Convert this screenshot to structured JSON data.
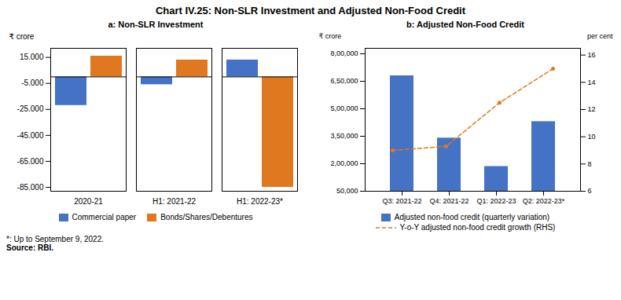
{
  "title": "Chart IV.25: Non-SLR Investment and Adjusted Non-Food Credit",
  "annotations": [
    "*: Up to September 9, 2022.",
    "Source: RBI."
  ],
  "chart_data": [
    {
      "type": "bar",
      "title": "a: Non-SLR Investment",
      "categories": [
        "2020-21",
        "H1: 2021-22",
        "H1: 2022-23*"
      ],
      "series": [
        {
          "name": "Commercial paper",
          "color": "#4472C4",
          "values": [
            -22000,
            -6000,
            13000
          ]
        },
        {
          "name": "Bonds/Shares/Debentures",
          "color": "#E07820",
          "values": [
            16000,
            13000,
            -85000
          ]
        }
      ],
      "ylabel": "₹ crore",
      "ylim": [
        -88000,
        22000
      ],
      "yticks": [
        {
          "value": 15000,
          "label": "15.000"
        },
        {
          "value": -5000,
          "label": "-5.000"
        },
        {
          "value": -25000,
          "label": "-25.000"
        },
        {
          "value": -45000,
          "label": "-45.000"
        },
        {
          "value": -65000,
          "label": "-65.000"
        },
        {
          "value": -85000,
          "label": "-85.000"
        }
      ],
      "grid": false,
      "legend": "bottom"
    },
    {
      "type": "bar",
      "title": "b: Adjusted Non-Food Credit",
      "categories": [
        "Q3: 2021-22",
        "Q4: 2021-22",
        "Q1: 2022-23",
        "Q2: 2022-23*"
      ],
      "series": [
        {
          "name": "Adjusted non-food credit (quarterly variation)",
          "type": "bar",
          "color": "#4472C4",
          "values": [
            680000,
            340000,
            185000,
            430000
          ]
        },
        {
          "name": "Y-o-Y adjusted non-food credit growth (RHS)",
          "type": "line",
          "axis": "y2",
          "color": "#E07820",
          "line_style": "dashed",
          "marker": "circle",
          "values": [
            9.0,
            9.3,
            12.5,
            15.0
          ]
        }
      ],
      "ylabel": "₹ crore",
      "y2label": "per cent",
      "ylim": [
        50000,
        830000
      ],
      "yticks": [
        {
          "value": 50000,
          "label": "50,000"
        },
        {
          "value": 200000,
          "label": "2,00,000"
        },
        {
          "value": 350000,
          "label": "3,50,000"
        },
        {
          "value": 500000,
          "label": "5,00,000"
        },
        {
          "value": 650000,
          "label": "6,50,000"
        },
        {
          "value": 800000,
          "label": "8,00,000"
        }
      ],
      "y2lim": [
        6,
        16.5
      ],
      "y2ticks": [
        6,
        8,
        10,
        12,
        14,
        16
      ],
      "grid": false,
      "legend": "bottom"
    }
  ]
}
